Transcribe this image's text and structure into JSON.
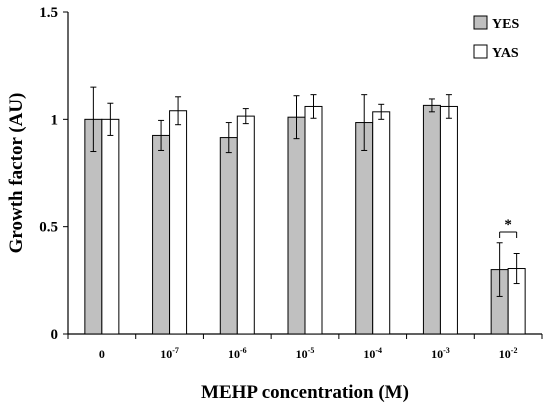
{
  "chart_data": {
    "type": "bar",
    "title": "",
    "xlabel": "MEHP concentration (M)",
    "ylabel": "Growth factor (AU)",
    "ylim": [
      0,
      1.5
    ],
    "yticks": [
      "0",
      "0.5",
      "1",
      "1.5"
    ],
    "grid": false,
    "legend_position": "top-right",
    "categories": [
      {
        "base": "0",
        "exp": ""
      },
      {
        "base": "10",
        "exp": "-7"
      },
      {
        "base": "10",
        "exp": "-6"
      },
      {
        "base": "10",
        "exp": "-5"
      },
      {
        "base": "10",
        "exp": "-4"
      },
      {
        "base": "10",
        "exp": "-3"
      },
      {
        "base": "10",
        "exp": "-2"
      }
    ],
    "series": [
      {
        "name": "YES",
        "color": "#c0c0c0",
        "values": [
          1.0,
          0.925,
          0.915,
          1.01,
          0.985,
          1.065,
          0.3
        ],
        "errors": [
          0.15,
          0.07,
          0.07,
          0.1,
          0.13,
          0.03,
          0.125
        ]
      },
      {
        "name": "YAS",
        "color": "#ffffff",
        "values": [
          1.0,
          1.04,
          1.015,
          1.06,
          1.035,
          1.06,
          0.305
        ],
        "errors": [
          0.075,
          0.065,
          0.035,
          0.055,
          0.035,
          0.055,
          0.07
        ]
      }
    ],
    "annotations": [
      {
        "text": "*",
        "category_index": 6
      }
    ]
  }
}
